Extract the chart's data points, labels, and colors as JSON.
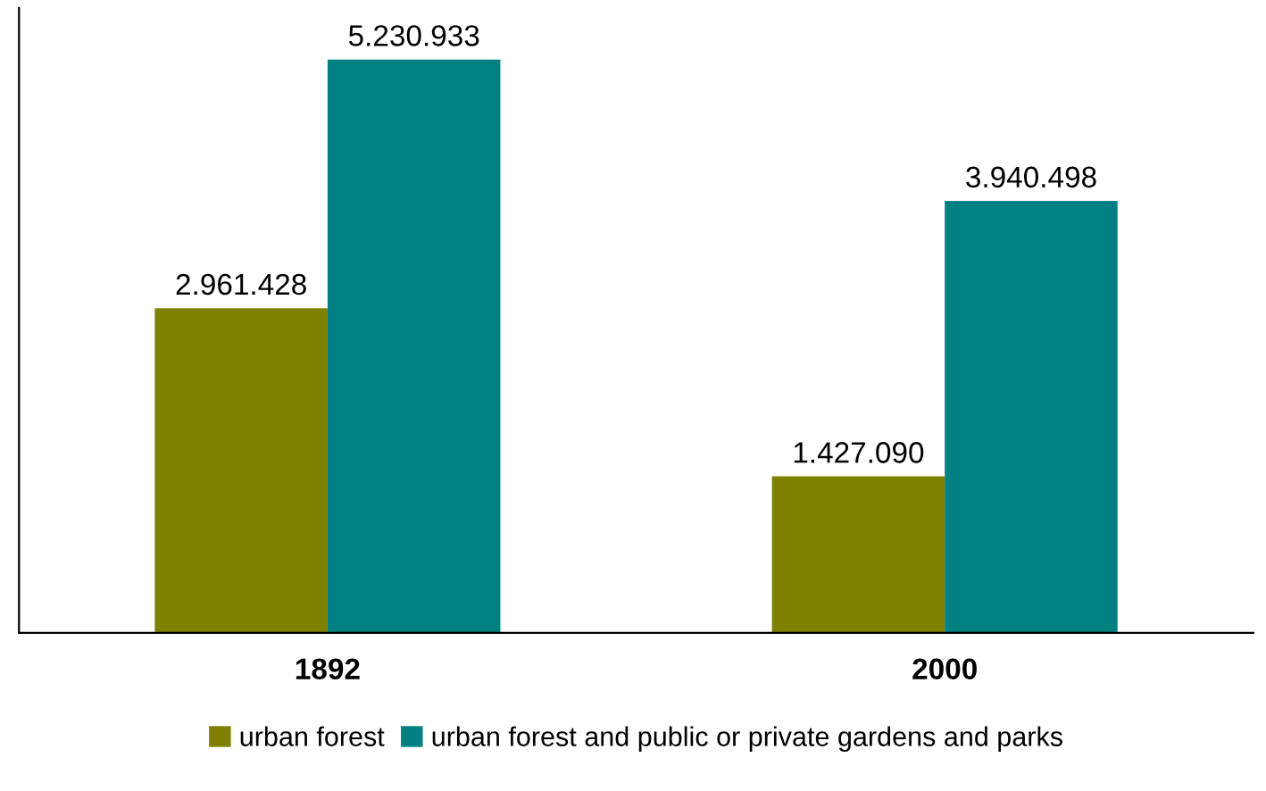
{
  "chart_data": {
    "type": "bar",
    "categories": [
      "1892",
      "2000"
    ],
    "series": [
      {
        "name": "urban forest",
        "color": "#808000",
        "values": [
          2961428,
          1427090
        ],
        "value_labels": [
          "2.961.428",
          "1.427.090"
        ]
      },
      {
        "name": "urban forest and public or private gardens and parks",
        "color": "#008080",
        "values": [
          5230933,
          3940498
        ],
        "value_labels": [
          "5.230.933",
          "3.940.498"
        ]
      }
    ],
    "legend": "bottom",
    "grid": false,
    "tick_labels": "x"
  }
}
